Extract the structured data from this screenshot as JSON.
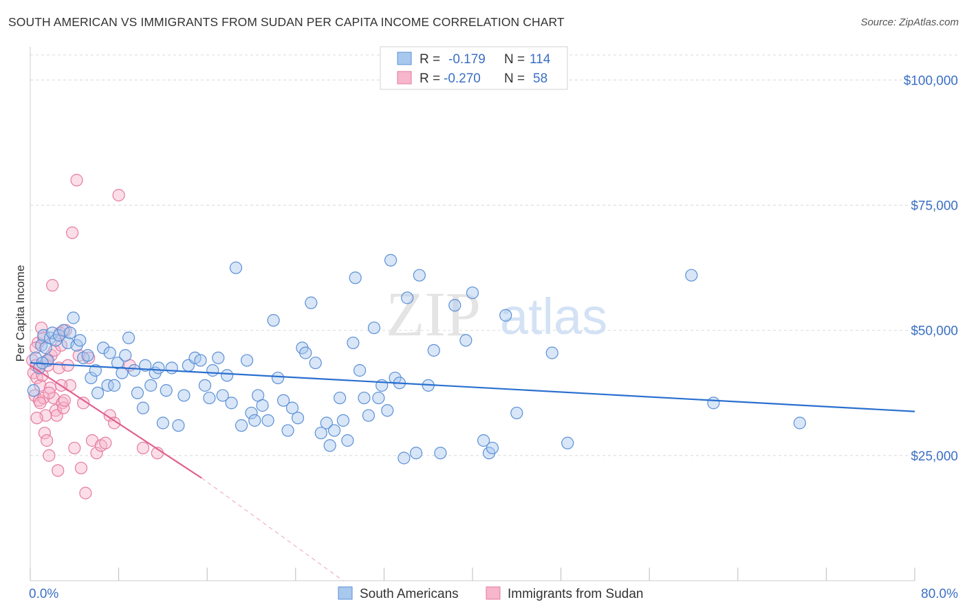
{
  "title": "SOUTH AMERICAN VS IMMIGRANTS FROM SUDAN PER CAPITA INCOME CORRELATION CHART",
  "source": "Source: ZipAtlas.com",
  "watermark": {
    "zip": "ZIP",
    "atlas": "atlas"
  },
  "colors": {
    "blue_fill": "#a9c8ee",
    "blue_stroke": "#5b8fd6",
    "blue_line": "#2a6fcf",
    "pink_fill": "#f6b6cb",
    "pink_stroke": "#e57aa0",
    "pink_line": "#e0608f",
    "grid": "#d8d8d8",
    "tick_text": "#3a6fc4"
  },
  "legend": {
    "rows": [
      {
        "r_label": "R =",
        "r_value": "-0.179",
        "n_label": "N =",
        "n_value": "114"
      },
      {
        "r_label": "R =",
        "r_value": "-0.270",
        "n_label": "N =",
        "n_value": "58"
      }
    ]
  },
  "bottom_legend": [
    "South Americans",
    "Immigrants from Sudan"
  ],
  "chart_data": {
    "type": "scatter",
    "title": "SOUTH AMERICAN VS IMMIGRANTS FROM SUDAN PER CAPITA INCOME CORRELATION CHART",
    "xlabel": "",
    "ylabel": "Per Capita Income",
    "xlim": [
      0,
      80
    ],
    "ylim": [
      0,
      105000
    ],
    "x_tick_labels": [
      "0.0%",
      "80.0%"
    ],
    "y_ticks": [
      25000,
      50000,
      75000,
      100000
    ],
    "y_tick_labels": [
      "$25,000",
      "$50,000",
      "$75,000",
      "$100,000"
    ],
    "grid": true,
    "legend_position": "top-center",
    "series": [
      {
        "name": "South Americans",
        "trend": {
          "x": [
            0,
            80
          ],
          "y": [
            43500,
            33800
          ]
        },
        "points": [
          [
            0.5,
            44500
          ],
          [
            0.8,
            42500
          ],
          [
            1.0,
            47000
          ],
          [
            1.2,
            49000
          ],
          [
            1.4,
            46500
          ],
          [
            1.6,
            44000
          ],
          [
            1.8,
            48500
          ],
          [
            2.0,
            49500
          ],
          [
            2.3,
            48000
          ],
          [
            2.6,
            49000
          ],
          [
            3.0,
            50000
          ],
          [
            3.4,
            47500
          ],
          [
            3.6,
            49500
          ],
          [
            3.9,
            52500
          ],
          [
            4.2,
            47000
          ],
          [
            4.5,
            48000
          ],
          [
            4.8,
            44500
          ],
          [
            5.2,
            45000
          ],
          [
            5.5,
            40500
          ],
          [
            5.9,
            42000
          ],
          [
            6.1,
            37500
          ],
          [
            6.6,
            46500
          ],
          [
            7.0,
            39000
          ],
          [
            7.2,
            45500
          ],
          [
            7.6,
            39000
          ],
          [
            7.9,
            43500
          ],
          [
            8.3,
            41500
          ],
          [
            8.6,
            45000
          ],
          [
            8.9,
            48500
          ],
          [
            9.4,
            42000
          ],
          [
            9.7,
            37500
          ],
          [
            10.2,
            34500
          ],
          [
            10.4,
            43000
          ],
          [
            10.9,
            39000
          ],
          [
            11.3,
            41500
          ],
          [
            11.6,
            42500
          ],
          [
            12.0,
            31500
          ],
          [
            12.3,
            38000
          ],
          [
            12.8,
            42500
          ],
          [
            13.4,
            31000
          ],
          [
            13.9,
            37000
          ],
          [
            14.3,
            43000
          ],
          [
            14.9,
            44500
          ],
          [
            15.4,
            44000
          ],
          [
            15.8,
            39000
          ],
          [
            16.2,
            36500
          ],
          [
            16.5,
            42000
          ],
          [
            17.0,
            44500
          ],
          [
            17.4,
            37000
          ],
          [
            17.8,
            41000
          ],
          [
            18.2,
            35500
          ],
          [
            18.6,
            62500
          ],
          [
            19.1,
            31000
          ],
          [
            19.6,
            44000
          ],
          [
            20.0,
            33500
          ],
          [
            20.3,
            32000
          ],
          [
            20.6,
            37000
          ],
          [
            21.0,
            35000
          ],
          [
            21.5,
            32000
          ],
          [
            22.0,
            52000
          ],
          [
            22.4,
            40500
          ],
          [
            22.9,
            36000
          ],
          [
            23.3,
            30000
          ],
          [
            23.7,
            34500
          ],
          [
            24.2,
            32500
          ],
          [
            24.6,
            46500
          ],
          [
            24.9,
            45500
          ],
          [
            25.4,
            55500
          ],
          [
            25.8,
            43500
          ],
          [
            26.3,
            29500
          ],
          [
            26.8,
            31500
          ],
          [
            27.1,
            27000
          ],
          [
            27.5,
            30000
          ],
          [
            28.0,
            36500
          ],
          [
            28.3,
            32000
          ],
          [
            28.7,
            28000
          ],
          [
            29.2,
            47500
          ],
          [
            29.4,
            60500
          ],
          [
            29.8,
            42000
          ],
          [
            30.2,
            36500
          ],
          [
            30.6,
            33000
          ],
          [
            31.1,
            50500
          ],
          [
            31.5,
            36500
          ],
          [
            31.8,
            39000
          ],
          [
            32.3,
            34000
          ],
          [
            32.6,
            64000
          ],
          [
            33.0,
            40500
          ],
          [
            33.4,
            39500
          ],
          [
            33.8,
            24500
          ],
          [
            34.1,
            56500
          ],
          [
            34.9,
            25500
          ],
          [
            35.2,
            61000
          ],
          [
            36.0,
            39000
          ],
          [
            36.5,
            46000
          ],
          [
            37.1,
            25500
          ],
          [
            38.4,
            55000
          ],
          [
            39.4,
            48000
          ],
          [
            40.0,
            57500
          ],
          [
            41.0,
            28000
          ],
          [
            41.5,
            25500
          ],
          [
            41.8,
            26500
          ],
          [
            43.0,
            53000
          ],
          [
            44.0,
            33500
          ],
          [
            47.2,
            45500
          ],
          [
            48.6,
            27500
          ],
          [
            59.8,
            61000
          ],
          [
            61.8,
            35500
          ],
          [
            69.6,
            31500
          ],
          [
            0.3,
            38000
          ],
          [
            1.1,
            43500
          ]
        ]
      },
      {
        "name": "Immigrants from Sudan",
        "trend": {
          "x": [
            0,
            15.5
          ],
          "y": [
            43000,
            20500
          ]
        },
        "trend_ext": {
          "x": [
            15.5,
            28.3
          ],
          "y": [
            20500,
            0
          ]
        },
        "points": [
          [
            0.2,
            44000
          ],
          [
            0.3,
            41500
          ],
          [
            0.4,
            37000
          ],
          [
            0.5,
            43000
          ],
          [
            0.6,
            40500
          ],
          [
            0.7,
            47500
          ],
          [
            0.8,
            36000
          ],
          [
            0.9,
            39000
          ],
          [
            1.0,
            50500
          ],
          [
            1.1,
            41000
          ],
          [
            1.2,
            36500
          ],
          [
            1.3,
            29500
          ],
          [
            1.4,
            33000
          ],
          [
            1.5,
            28000
          ],
          [
            1.6,
            43000
          ],
          [
            1.7,
            25000
          ],
          [
            1.8,
            38500
          ],
          [
            1.9,
            45000
          ],
          [
            2.0,
            59000
          ],
          [
            2.1,
            36500
          ],
          [
            2.2,
            46000
          ],
          [
            2.3,
            34000
          ],
          [
            2.4,
            33000
          ],
          [
            2.5,
            22000
          ],
          [
            2.6,
            42500
          ],
          [
            2.7,
            49500
          ],
          [
            2.8,
            47000
          ],
          [
            2.9,
            35500
          ],
          [
            3.0,
            34500
          ],
          [
            3.1,
            36000
          ],
          [
            3.2,
            50000
          ],
          [
            3.4,
            43000
          ],
          [
            3.6,
            39000
          ],
          [
            3.8,
            69500
          ],
          [
            4.0,
            26500
          ],
          [
            4.2,
            80000
          ],
          [
            4.4,
            45000
          ],
          [
            4.6,
            22500
          ],
          [
            4.8,
            35500
          ],
          [
            5.0,
            17500
          ],
          [
            5.3,
            44500
          ],
          [
            5.6,
            28000
          ],
          [
            6.0,
            25500
          ],
          [
            6.4,
            27000
          ],
          [
            6.8,
            27500
          ],
          [
            7.2,
            33000
          ],
          [
            7.6,
            31500
          ],
          [
            8.0,
            77000
          ],
          [
            9.0,
            43000
          ],
          [
            10.2,
            26500
          ],
          [
            11.5,
            25500
          ],
          [
            0.5,
            46500
          ],
          [
            0.6,
            32500
          ],
          [
            0.9,
            35500
          ],
          [
            1.2,
            48500
          ],
          [
            1.5,
            44000
          ],
          [
            1.7,
            37500
          ],
          [
            2.8,
            39000
          ]
        ]
      }
    ]
  }
}
